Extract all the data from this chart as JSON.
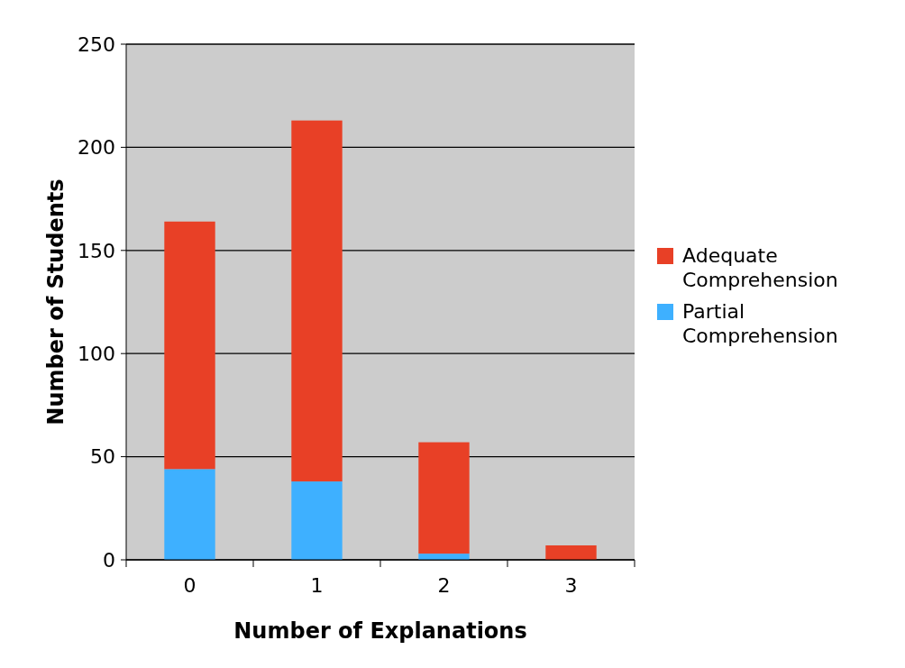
{
  "chart_data": {
    "type": "bar",
    "stacked": true,
    "xlabel": "Number of Explanations",
    "ylabel": "Number of Students",
    "categories": [
      "0",
      "1",
      "2",
      "3"
    ],
    "series": [
      {
        "name": "Partial Comprehension",
        "color": "#3eb0ff",
        "values": [
          44,
          38,
          3,
          0
        ]
      },
      {
        "name": "Adequate Comprehension",
        "color": "#e84026",
        "values": [
          120,
          175,
          54,
          7
        ]
      }
    ],
    "ylim": [
      0,
      250
    ],
    "yticks": [
      0,
      50,
      100,
      150,
      200,
      250
    ],
    "grid": "y",
    "legend": "right"
  }
}
